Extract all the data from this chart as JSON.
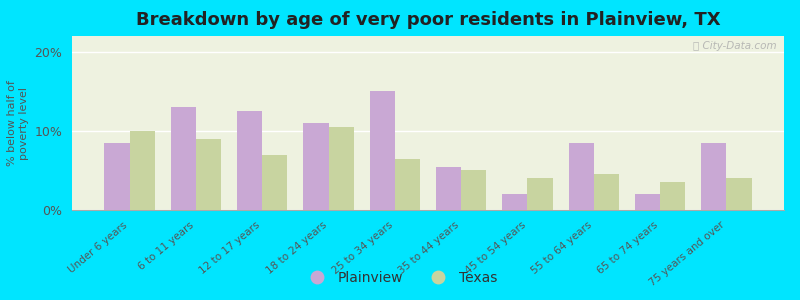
{
  "title": "Breakdown by age of very poor residents in Plainview, TX",
  "categories": [
    "Under 6 years",
    "6 to 11 years",
    "12 to 17 years",
    "18 to 24 years",
    "25 to 34 years",
    "35 to 44 years",
    "45 to 54 years",
    "55 to 64 years",
    "65 to 74 years",
    "75 years and over"
  ],
  "plainview": [
    8.5,
    13.0,
    12.5,
    11.0,
    15.0,
    5.5,
    2.0,
    8.5,
    2.0,
    8.5
  ],
  "texas": [
    10.0,
    9.0,
    7.0,
    10.5,
    6.5,
    5.0,
    4.0,
    4.5,
    3.5,
    4.0
  ],
  "plainview_color": "#c9a8d4",
  "texas_color": "#c8d4a0",
  "background_outer": "#00e5ff",
  "background_plot": "#eef2e0",
  "ylabel": "% below half of\npoverty level",
  "ylim": [
    0,
    22
  ],
  "yticks": [
    0,
    10,
    20
  ],
  "ytick_labels": [
    "0%",
    "10%",
    "20%"
  ],
  "title_fontsize": 13,
  "legend_plainview": "Plainview",
  "legend_texas": "Texas",
  "bar_width": 0.38,
  "watermark": "ⓘ City-Data.com"
}
